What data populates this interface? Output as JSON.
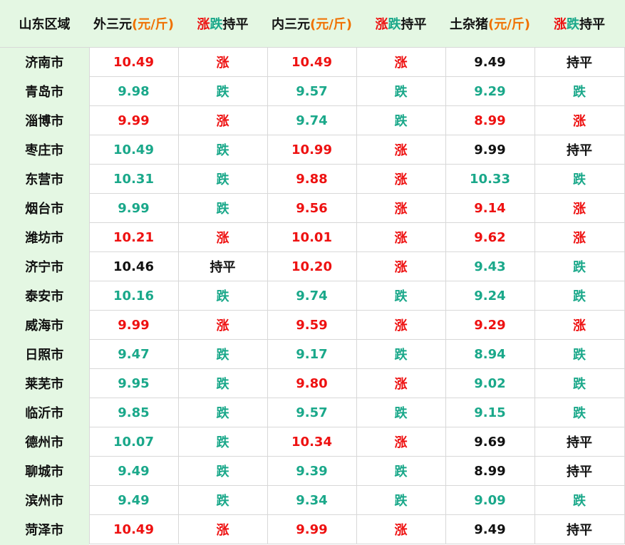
{
  "header": {
    "region": "山东区域",
    "col1_name": "外三元",
    "col1_unit": "(元/斤)",
    "trend_up": "涨",
    "trend_down": "跌",
    "trend_flat": "持平",
    "col3_name": "内三元",
    "col3_unit": "(元/斤)",
    "col5_name": "土杂猪",
    "col5_unit": "(元/斤)"
  },
  "colors": {
    "up": "#ee1111",
    "down": "#1aa88a",
    "flat": "#111111",
    "unit": "#f07000",
    "header_bg": "#e4f7e3"
  },
  "rows": [
    {
      "city": "济南市",
      "outer": "10.49",
      "outer_trend": "涨",
      "inner": "10.49",
      "inner_trend": "涨",
      "local": "9.49",
      "local_trend": "持平"
    },
    {
      "city": "青岛市",
      "outer": "9.98",
      "outer_trend": "跌",
      "inner": "9.57",
      "inner_trend": "跌",
      "local": "9.29",
      "local_trend": "跌"
    },
    {
      "city": "淄博市",
      "outer": "9.99",
      "outer_trend": "涨",
      "inner": "9.74",
      "inner_trend": "跌",
      "local": "8.99",
      "local_trend": "涨"
    },
    {
      "city": "枣庄市",
      "outer": "10.49",
      "outer_trend": "跌",
      "inner": "10.99",
      "inner_trend": "涨",
      "local": "9.99",
      "local_trend": "持平"
    },
    {
      "city": "东营市",
      "outer": "10.31",
      "outer_trend": "跌",
      "inner": "9.88",
      "inner_trend": "涨",
      "local": "10.33",
      "local_trend": "跌"
    },
    {
      "city": "烟台市",
      "outer": "9.99",
      "outer_trend": "跌",
      "inner": "9.56",
      "inner_trend": "涨",
      "local": "9.14",
      "local_trend": "涨"
    },
    {
      "city": "潍坊市",
      "outer": "10.21",
      "outer_trend": "涨",
      "inner": "10.01",
      "inner_trend": "涨",
      "local": "9.62",
      "local_trend": "涨"
    },
    {
      "city": "济宁市",
      "outer": "10.46",
      "outer_trend": "持平",
      "inner": "10.20",
      "inner_trend": "涨",
      "local": "9.43",
      "local_trend": "跌"
    },
    {
      "city": "泰安市",
      "outer": "10.16",
      "outer_trend": "跌",
      "inner": "9.74",
      "inner_trend": "跌",
      "local": "9.24",
      "local_trend": "跌"
    },
    {
      "city": "威海市",
      "outer": "9.99",
      "outer_trend": "涨",
      "inner": "9.59",
      "inner_trend": "涨",
      "local": "9.29",
      "local_trend": "涨"
    },
    {
      "city": "日照市",
      "outer": "9.47",
      "outer_trend": "跌",
      "inner": "9.17",
      "inner_trend": "跌",
      "local": "8.94",
      "local_trend": "跌"
    },
    {
      "city": "莱芜市",
      "outer": "9.95",
      "outer_trend": "跌",
      "inner": "9.80",
      "inner_trend": "涨",
      "local": "9.02",
      "local_trend": "跌"
    },
    {
      "city": "临沂市",
      "outer": "9.85",
      "outer_trend": "跌",
      "inner": "9.57",
      "inner_trend": "跌",
      "local": "9.15",
      "local_trend": "跌"
    },
    {
      "city": "德州市",
      "outer": "10.07",
      "outer_trend": "跌",
      "inner": "10.34",
      "inner_trend": "涨",
      "local": "9.69",
      "local_trend": "持平"
    },
    {
      "city": "聊城市",
      "outer": "9.49",
      "outer_trend": "跌",
      "inner": "9.39",
      "inner_trend": "跌",
      "local": "8.99",
      "local_trend": "持平"
    },
    {
      "city": "滨州市",
      "outer": "9.49",
      "outer_trend": "跌",
      "inner": "9.34",
      "inner_trend": "跌",
      "local": "9.09",
      "local_trend": "跌"
    },
    {
      "city": "菏泽市",
      "outer": "10.49",
      "outer_trend": "涨",
      "inner": "9.99",
      "inner_trend": "涨",
      "local": "9.49",
      "local_trend": "持平"
    }
  ]
}
